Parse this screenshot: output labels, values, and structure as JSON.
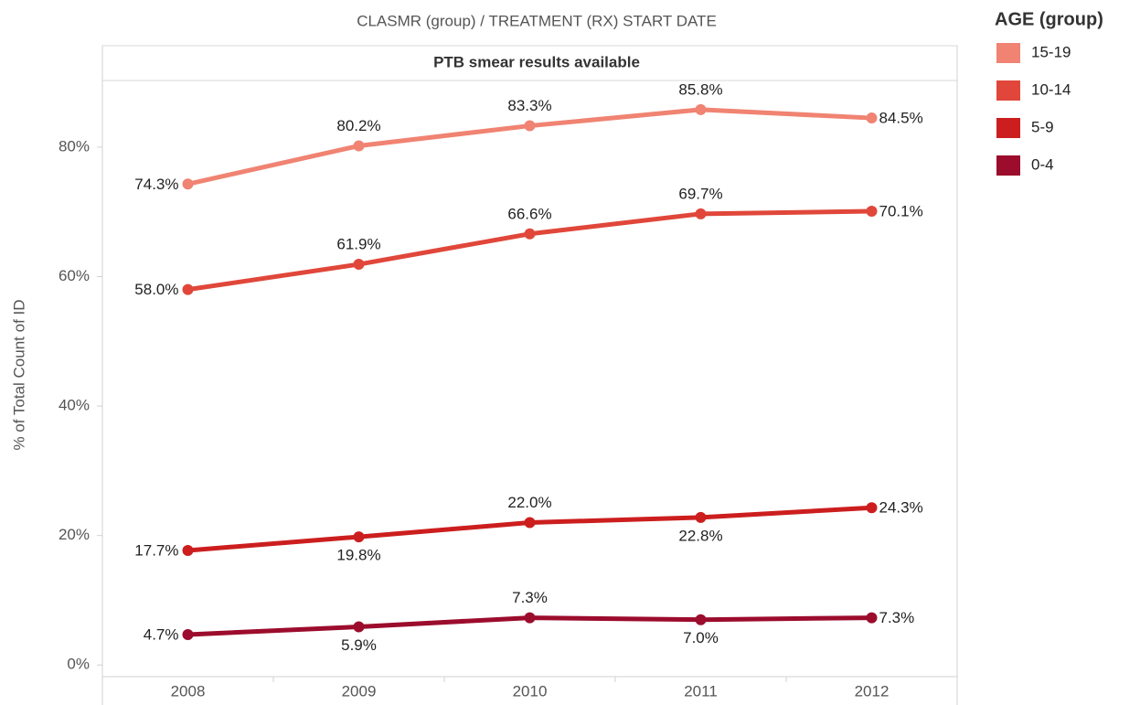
{
  "chart_data": {
    "type": "line",
    "title": "CLASMR (group)  /  TREATMENT (RX) START DATE",
    "subtitle": "PTB smear results available",
    "y_label": "% of Total Count of ID",
    "legend_title": "AGE (group)",
    "categories": [
      "2008",
      "2009",
      "2010",
      "2011",
      "2012"
    ],
    "series": [
      {
        "name": "15-19",
        "color": "#f08372",
        "values": [
          74.3,
          80.2,
          83.3,
          85.8,
          84.5
        ],
        "value_labels": [
          "74.3%",
          "80.2%",
          "83.3%",
          "85.8%",
          "84.5%"
        ]
      },
      {
        "name": "10-14",
        "color": "#e0473a",
        "values": [
          58.0,
          61.9,
          66.6,
          69.7,
          70.1
        ],
        "value_labels": [
          "58.0%",
          "61.9%",
          "66.6%",
          "69.7%",
          "70.1%"
        ]
      },
      {
        "name": "5-9",
        "color": "#cc1e1e",
        "values": [
          17.7,
          19.8,
          22.0,
          22.8,
          24.3
        ],
        "value_labels": [
          "17.7%",
          "19.8%",
          "22.0%",
          "22.8%",
          "24.3%"
        ]
      },
      {
        "name": "0-4",
        "color": "#9c0c2c",
        "values": [
          4.7,
          5.9,
          7.3,
          7.0,
          7.3
        ],
        "value_labels": [
          "4.7%",
          "5.9%",
          "7.3%",
          "7.0%",
          "7.3%"
        ]
      }
    ],
    "ylim": [
      -1.8,
      90.3
    ],
    "yticks": [
      {
        "value": 0,
        "label": "0%"
      },
      {
        "value": 20,
        "label": "20%"
      },
      {
        "value": 40,
        "label": "40%"
      },
      {
        "value": 60,
        "label": "60%"
      },
      {
        "value": 80,
        "label": "80%"
      }
    ],
    "legend_position": "right"
  }
}
